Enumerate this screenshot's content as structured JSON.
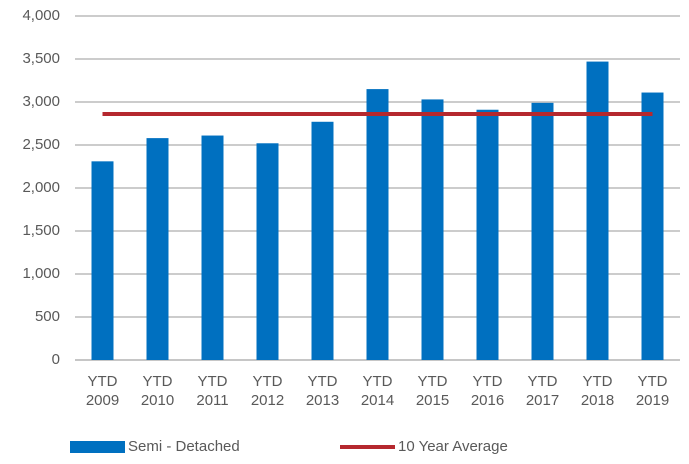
{
  "chart_data": {
    "type": "bar",
    "categories": [
      "YTD 2009",
      "YTD 2010",
      "YTD 2011",
      "YTD 2012",
      "YTD 2013",
      "YTD 2014",
      "YTD 2015",
      "YTD 2016",
      "YTD 2017",
      "YTD 2018",
      "YTD 2019"
    ],
    "series": [
      {
        "name": "Semi - Detached",
        "type": "bar",
        "color": "#0070c0",
        "values": [
          2310,
          2580,
          2610,
          2520,
          2770,
          3150,
          3030,
          2910,
          2990,
          3470,
          3110
        ]
      },
      {
        "name": "10 Year Average",
        "type": "line",
        "color": "#b5282e",
        "values": [
          2860,
          2860,
          2860,
          2860,
          2860,
          2860,
          2860,
          2860,
          2860,
          2860,
          2860
        ]
      }
    ],
    "ylim": [
      0,
      4000
    ],
    "yticks": [
      0,
      500,
      {
        "value": 1000,
        "label": "1,000"
      },
      {
        "value": 1500,
        "label": "1,500"
      },
      {
        "value": 2000,
        "label": "2,000"
      },
      {
        "value": 2500,
        "label": "2,500"
      },
      {
        "value": 3000,
        "label": "3,000"
      },
      {
        "value": 3500,
        "label": "3,500"
      },
      {
        "value": 4000,
        "label": "4,000"
      }
    ],
    "grid": true,
    "legend": "bottom"
  }
}
